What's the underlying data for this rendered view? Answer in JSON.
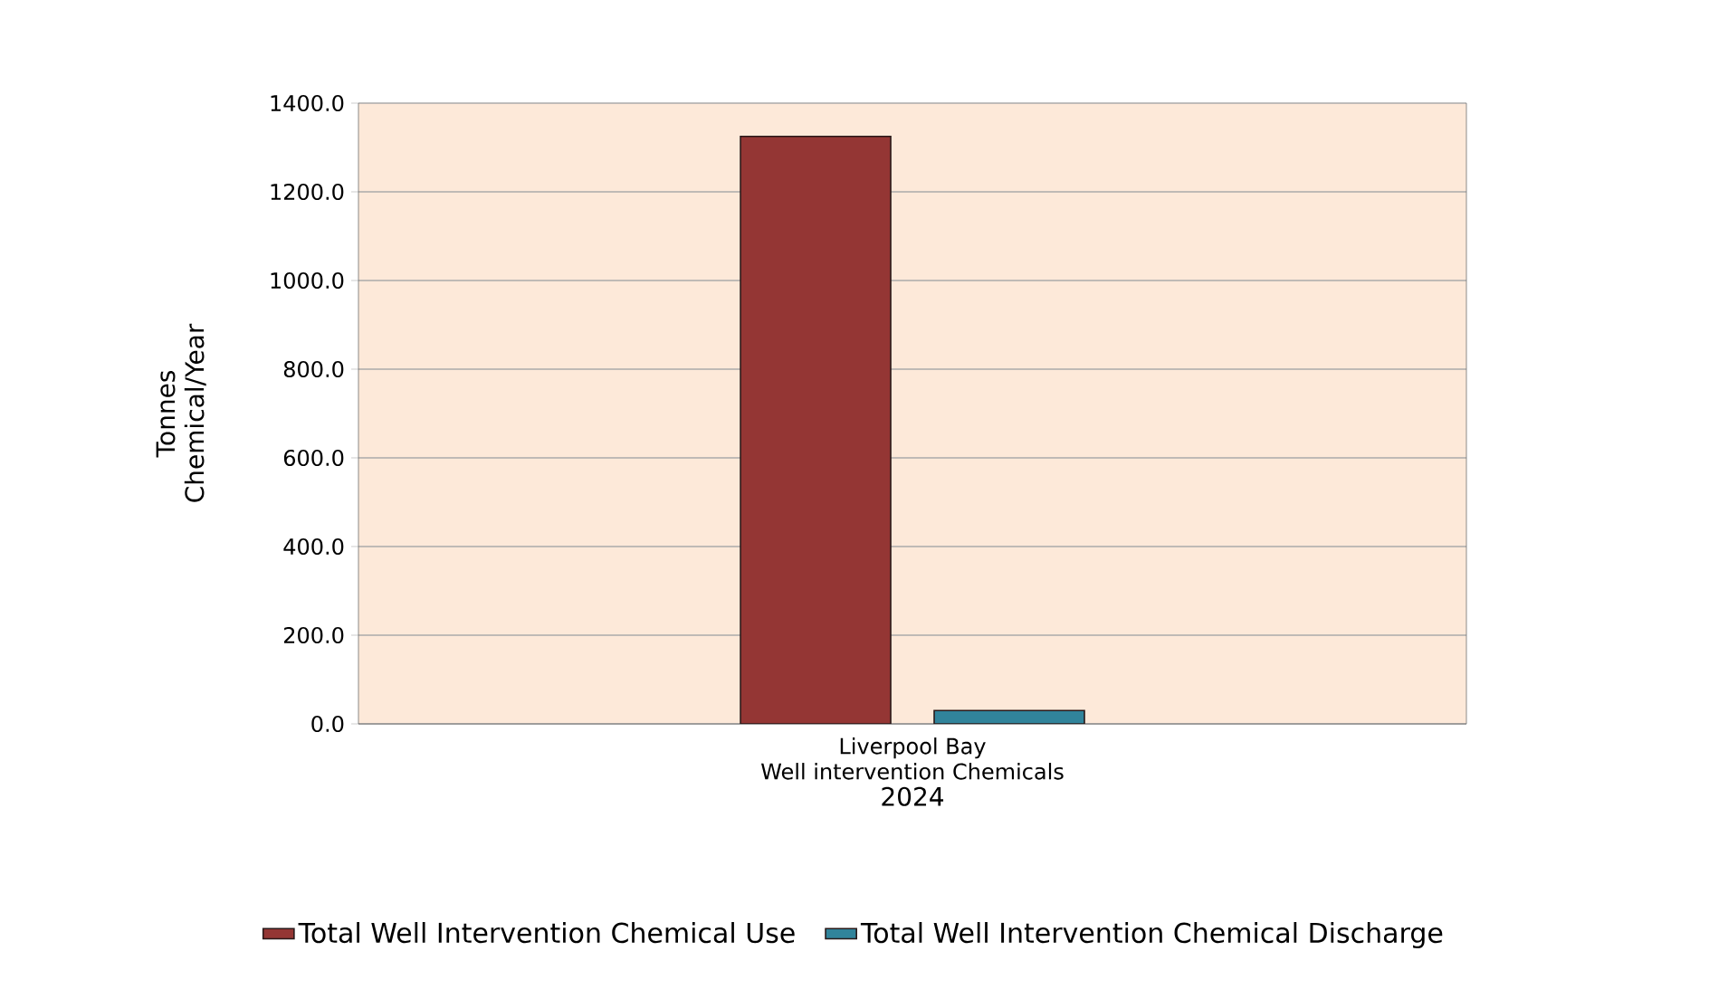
{
  "chart_data": {
    "type": "bar",
    "categories": [
      "Liverpool Bay Well intervention Chemicals"
    ],
    "series": [
      {
        "name": "Total Well Intervention Chemical Use",
        "color": "#943634",
        "values": [
          1325
        ]
      },
      {
        "name": "Total Well Intervention Chemical Discharge",
        "color": "#31849b",
        "values": [
          30
        ]
      }
    ],
    "xlabel": "2024",
    "ylabel": "Tonnes Chemical/Year",
    "ylim": [
      0,
      1400
    ],
    "yticks": [
      {
        "value": 0,
        "label": "0.0"
      },
      {
        "value": 200,
        "label": "200.0"
      },
      {
        "value": 400,
        "label": "400.0"
      },
      {
        "value": 600,
        "label": "600.0"
      },
      {
        "value": 800,
        "label": "800.0"
      },
      {
        "value": 1000,
        "label": "1000.0"
      },
      {
        "value": 1200,
        "label": "1200.0"
      },
      {
        "value": 1400,
        "label": "1400.0"
      }
    ],
    "grid": "y",
    "legend": "bottom"
  }
}
